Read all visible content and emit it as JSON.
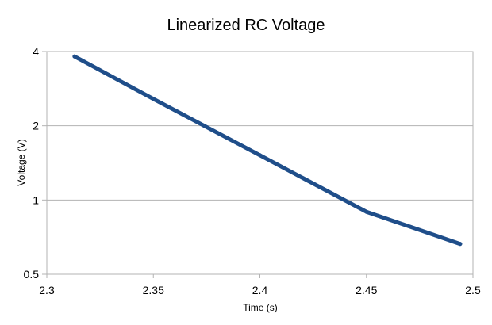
{
  "chart_data": {
    "type": "line",
    "title": "Linearized RC Voltage",
    "xlabel": "Time (s)",
    "ylabel": "Voltage (V)",
    "xlim": [
      2.3,
      2.5
    ],
    "ylim": [
      0.5,
      4
    ],
    "y_scale": "log",
    "grid": true,
    "legend": "none",
    "x_ticks": [
      "2.3",
      "2.35",
      "2.4",
      "2.45",
      "2.5"
    ],
    "y_ticks": [
      "0.5",
      "1",
      "2",
      "4"
    ],
    "series": [
      {
        "color": "#1f4e8a",
        "x": [
          2.313,
          2.35,
          2.4,
          2.45,
          2.494
        ],
        "y": [
          3.82,
          2.57,
          1.52,
          0.896,
          0.664
        ]
      }
    ]
  }
}
